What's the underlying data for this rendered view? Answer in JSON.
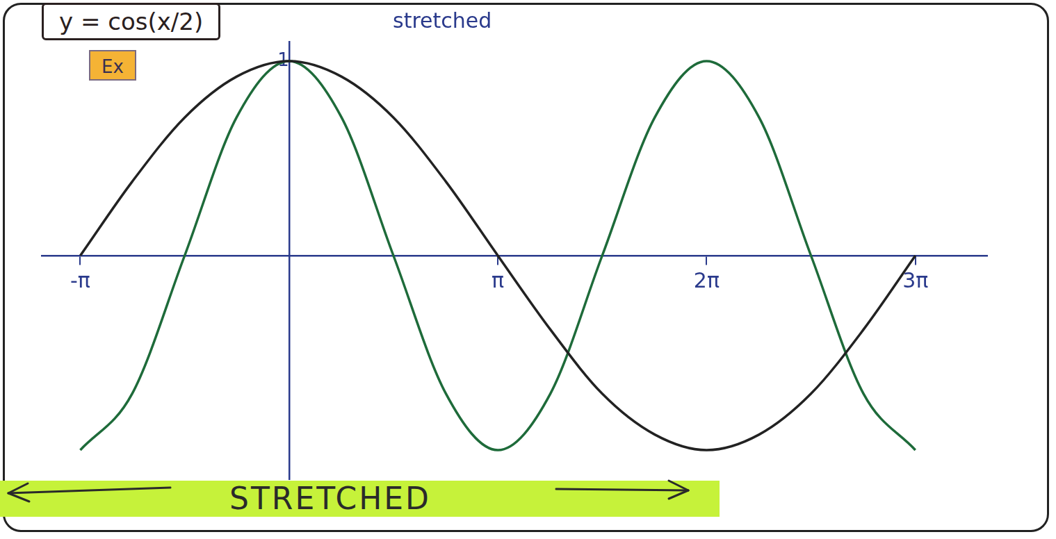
{
  "chart_data": {
    "type": "line",
    "title": "y = cos(x/2)",
    "annotations": [
      "stretched",
      "Ex",
      "STRETCHED"
    ],
    "x": [
      -3.14,
      -2.36,
      -1.57,
      -0.79,
      0,
      0.79,
      1.57,
      2.36,
      3.14,
      3.93,
      4.71,
      5.5,
      6.28,
      7.07,
      7.85,
      8.64,
      9.42
    ],
    "series": [
      {
        "color": "#222222",
        "values": [
          0,
          0.38,
          0.71,
          0.92,
          1,
          0.92,
          0.71,
          0.38,
          0,
          -0.38,
          -0.71,
          -0.92,
          -1,
          -0.92,
          -0.71,
          -0.38,
          0
        ]
      },
      {
        "color": "#1e6b3a",
        "values": [
          -1,
          -0.71,
          0,
          0.71,
          1,
          0.71,
          0,
          -0.71,
          -1,
          -0.71,
          0,
          0.71,
          1,
          0.71,
          0,
          -0.71,
          -1
        ]
      }
    ],
    "xlim": [
      -3.72,
      10.5
    ],
    "xticks": [
      {
        "value": -3.14,
        "label": "-π"
      },
      {
        "value": 3.14,
        "label": "π"
      },
      {
        "value": 6.28,
        "label": "2π"
      },
      {
        "value": 9.42,
        "label": "3π"
      }
    ],
    "ylim": [
      -1.15,
      1.1
    ],
    "yticks": [
      1
    ],
    "grid": false
  }
}
